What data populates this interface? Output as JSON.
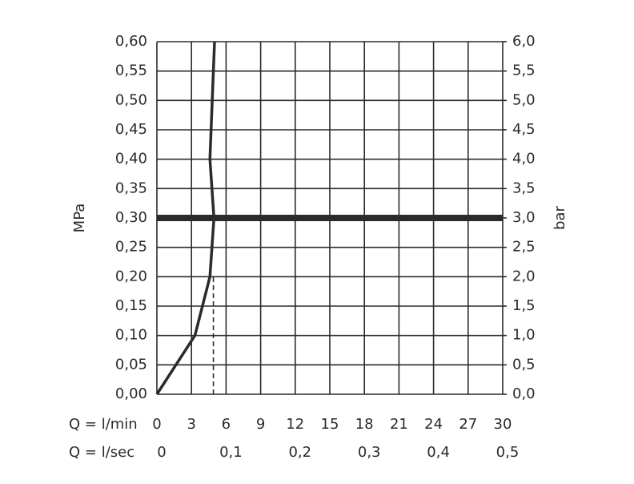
{
  "chart_data": {
    "type": "line",
    "ylabel": "MPa",
    "y2label": "bar",
    "xlabel": "Q = l/min",
    "x2label": "Q = l/sec",
    "xlim": [
      0,
      30
    ],
    "xticks": [
      0,
      3,
      6,
      9,
      12,
      15,
      18,
      21,
      24,
      27,
      30
    ],
    "x2lim": [
      0,
      0.5
    ],
    "x2ticks": [
      0,
      {
        "value": 0.1,
        "label": "0,1"
      },
      {
        "value": 0.2,
        "label": "0,2"
      },
      {
        "value": 0.3,
        "label": "0,3"
      },
      {
        "value": 0.4,
        "label": "0,4"
      },
      {
        "value": 0.5,
        "label": "0,5"
      }
    ],
    "ylim": [
      0,
      0.6
    ],
    "yticks": [
      {
        "value": 0,
        "label": "0,00"
      },
      {
        "value": 0.05,
        "label": "0,05"
      },
      {
        "value": 0.1,
        "label": "0,10"
      },
      {
        "value": 0.15,
        "label": "0,15"
      },
      {
        "value": 0.2,
        "label": "0,20"
      },
      {
        "value": 0.25,
        "label": "0,25"
      },
      {
        "value": 0.3,
        "label": "0,30"
      },
      {
        "value": 0.35,
        "label": "0,35"
      },
      {
        "value": 0.4,
        "label": "0,40"
      },
      {
        "value": 0.45,
        "label": "0,45"
      },
      {
        "value": 0.5,
        "label": "0,50"
      },
      {
        "value": 0.55,
        "label": "0,55"
      },
      {
        "value": 0.6,
        "label": "0,60"
      }
    ],
    "y2lim": [
      0,
      6
    ],
    "y2ticks": [
      {
        "value": 0,
        "label": "0,0"
      },
      {
        "value": 0.5,
        "label": "0,5"
      },
      {
        "value": 1,
        "label": "1,0"
      },
      {
        "value": 1.5,
        "label": "1,5"
      },
      {
        "value": 2,
        "label": "2,0"
      },
      {
        "value": 2.5,
        "label": "2,5"
      },
      {
        "value": 3,
        "label": "3,0"
      },
      {
        "value": 3.5,
        "label": "3,5"
      },
      {
        "value": 4,
        "label": "4,0"
      },
      {
        "value": 4.5,
        "label": "4,5"
      },
      {
        "value": 5,
        "label": "5,0"
      },
      {
        "value": 5.5,
        "label": "5,5"
      },
      {
        "value": 6,
        "label": "6,0"
      }
    ],
    "grid": true,
    "series": [
      {
        "color": "#2b2b2b",
        "x": [
          0,
          3.3,
          4.6,
          4.95,
          4.6,
          5.0
        ],
        "values": [
          0,
          0.1,
          0.2,
          0.3,
          0.4,
          0.6
        ]
      }
    ],
    "reference_line": {
      "y": 0.3,
      "color": "#2b2b2b"
    },
    "dashed_line": {
      "x": 4.9,
      "y": [
        0,
        0.2
      ],
      "color": "#2b2b2b"
    }
  }
}
